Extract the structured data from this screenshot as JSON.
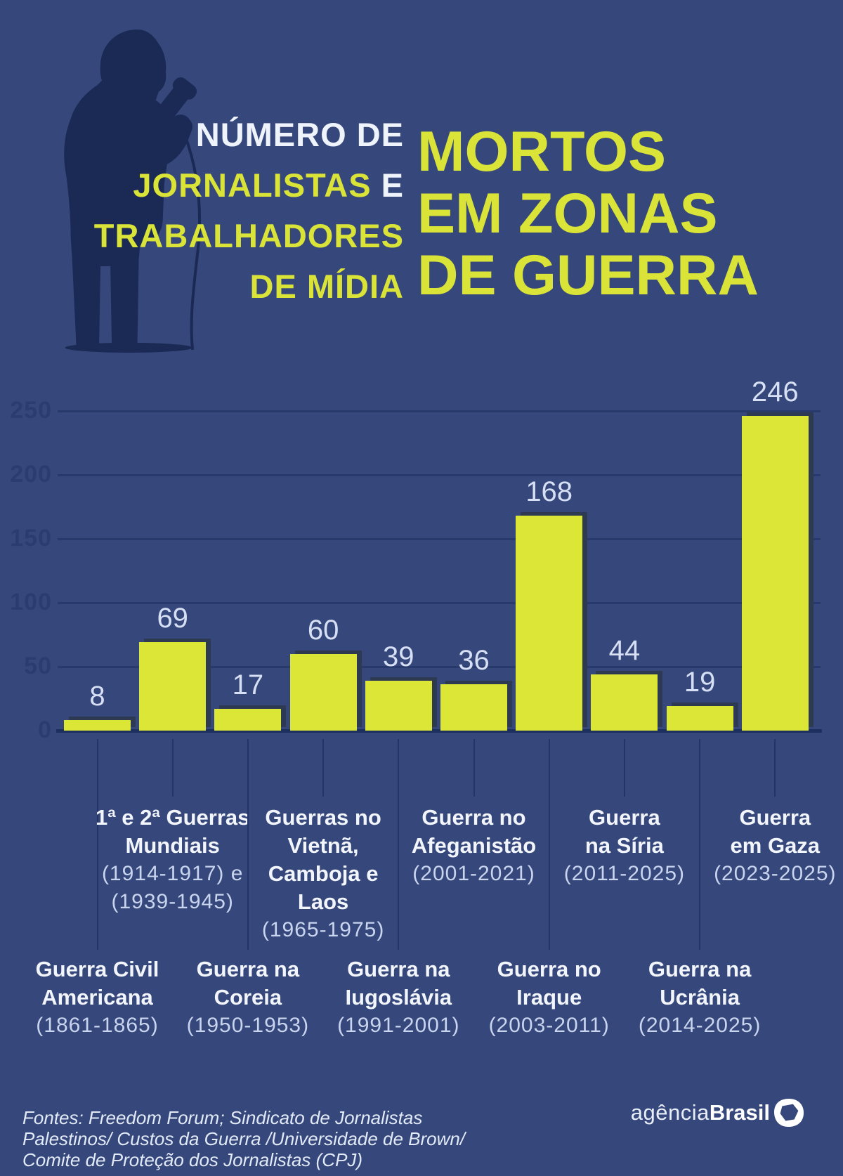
{
  "header": {
    "kicker_line1": "NÚMERO DE",
    "kicker_line2_yellow": "JORNALISTAS ",
    "kicker_line2_white": "E",
    "kicker_line3": "TRABALHADORES",
    "kicker_line4": "DE MÍDIA",
    "title_line1": "MORTOS",
    "title_line2": "EM ZONAS",
    "title_line3": "DE GUERRA"
  },
  "chart_data": {
    "type": "bar",
    "title": "Número de jornalistas e trabalhadores de mídia mortos em zonas de guerra",
    "xlabel": "",
    "ylabel": "",
    "ylim": [
      0,
      250
    ],
    "yticks": [
      0,
      50,
      100,
      150,
      200,
      250
    ],
    "grid": true,
    "bar_color": "#DCE637",
    "background_color": "#36487B",
    "values": [
      8,
      69,
      17,
      60,
      39,
      36,
      168,
      44,
      19,
      246
    ],
    "categories": [
      {
        "name_lines": [
          "Guerra Civil",
          "Americana"
        ],
        "year_lines": [
          "(1861-1865)"
        ],
        "label_row": "bottom"
      },
      {
        "name_lines": [
          "1ª e 2ª Guerras",
          "Mundiais"
        ],
        "year_lines": [
          "(1914-1917) e",
          "(1939-1945)"
        ],
        "label_row": "top"
      },
      {
        "name_lines": [
          "Guerra na",
          "Coreia"
        ],
        "year_lines": [
          "(1950-1953)"
        ],
        "label_row": "bottom"
      },
      {
        "name_lines": [
          "Guerras no",
          "Vietnã,",
          "Camboja e",
          "Laos"
        ],
        "year_lines": [
          "(1965-1975)"
        ],
        "label_row": "top"
      },
      {
        "name_lines": [
          "Guerra na",
          "Iugoslávia"
        ],
        "year_lines": [
          "(1991-2001)"
        ],
        "label_row": "bottom"
      },
      {
        "name_lines": [
          "Guerra no",
          "Afeganistão"
        ],
        "year_lines": [
          "(2001-2021)"
        ],
        "label_row": "top"
      },
      {
        "name_lines": [
          "Guerra no",
          "Iraque"
        ],
        "year_lines": [
          "(2003-2011)"
        ],
        "label_row": "bottom"
      },
      {
        "name_lines": [
          "Guerra",
          "na Síria"
        ],
        "year_lines": [
          "(2011-2025)"
        ],
        "label_row": "top"
      },
      {
        "name_lines": [
          "Guerra na",
          "Ucrânia"
        ],
        "year_lines": [
          "(2014-2025)"
        ],
        "label_row": "bottom"
      },
      {
        "name_lines": [
          "Guerra",
          "em Gaza"
        ],
        "year_lines": [
          "(2023-2025)"
        ],
        "label_row": "top"
      }
    ]
  },
  "footer": {
    "source_lines": [
      "Fontes:  Freedom Forum; Sindicato de Jornalistas",
      "Palestinos/ Custos da Guerra /Universidade de Brown/",
      "Comite de Proteção dos Jornalistas (CPJ)"
    ],
    "logo_light": "agência",
    "logo_bold": "Brasil"
  },
  "colors": {
    "background": "#36487B",
    "accent_yellow": "#DCE637",
    "dark_navy": "#1B2A55",
    "white_text": "#EFF3FB",
    "muted_year_text": "#C9D4EE"
  }
}
